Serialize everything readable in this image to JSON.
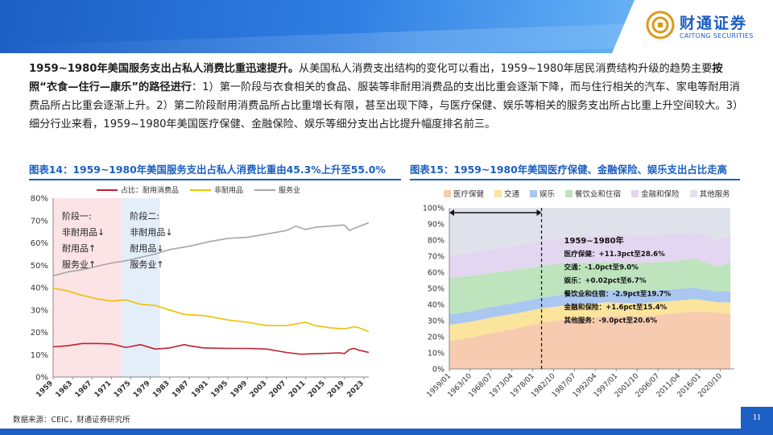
{
  "brand": {
    "name_cn": "财通证券",
    "name_en": "CAITONG SECURITIES"
  },
  "paragraph": {
    "bold_lead": "1959~1980年美国服务支出占私人消费比重迅速提升。",
    "part1": "从美国私人消费支出结构的变化可以看出，1959~1980年居民消费结构升级的趋势主要",
    "bold_mid": "按照“衣食—住行—康乐”的路径进行",
    "part2": "：1）第一阶段与衣食相关的食品、服装等非耐用消费品的支出比重会逐渐下降，而与住行相关的汽车、家电等耐用消费品所占比重会逐渐上升。2）第二阶段耐用消费品所占比重增长有限，甚至出现下降，与医疗保健、娱乐等相关的服务支出所占比重上升空间较大。3）细分行业来看，1959~1980年美国医疗保健、金融保险、娱乐等细分支出占比提升幅度排名前三。"
  },
  "figure14": {
    "title": "图表14：1959~1980年美国服务支出占私人消费比重由45.3%上升至55.0%"
  },
  "figure15": {
    "title": "图表15：1959~1980年美国医疗保健、金融保险、娱乐支出占比走高"
  },
  "source": "数据来源：CEIC，财通证券研究所",
  "page_number": "11",
  "colors": {
    "brand_blue": "#1d5ec4",
    "durable": "#c0202f",
    "nondurable": "#f0c000",
    "service": "#a6a6a6",
    "stage1_band": "#fbe3e6",
    "stage2_band": "#e3eef9",
    "healthcare": "#f6cbb0",
    "transport": "#fbe49c",
    "entertainment": "#a9c7f0",
    "food_lodging": "#bde4bc",
    "finance": "#e3d6f0",
    "other": "#dfe2ea"
  },
  "chart_data": [
    {
      "type": "line",
      "x_ticks": [
        "1959",
        "1963",
        "1967",
        "1971",
        "1975",
        "1979",
        "1983",
        "1987",
        "1991",
        "1995",
        "1999",
        "2003",
        "2007",
        "2011",
        "2015",
        "2019",
        "2023"
      ],
      "ylim": [
        0,
        80
      ],
      "y_ticks": [
        "0%",
        "10%",
        "20%",
        "30%",
        "40%",
        "50%",
        "60%",
        "70%",
        "80%"
      ],
      "grid": false,
      "legend_position": "top",
      "stage_bands": [
        {
          "label_lines": [
            "阶段一:",
            "非耐用品↓",
            "耐用品↑",
            "服务业↑"
          ],
          "from": 1959,
          "to": 1973
        },
        {
          "label_lines": [
            "阶段二:",
            "非耐用品↓",
            "耐用品↓",
            "服务业↑"
          ],
          "from": 1973,
          "to": 1981
        }
      ],
      "series": [
        {
          "name": "占比：耐用消费品",
          "color": "#c0202f",
          "points": [
            [
              1959,
              13.5
            ],
            [
              1962,
              14
            ],
            [
              1965,
              15
            ],
            [
              1968,
              15
            ],
            [
              1971,
              14.8
            ],
            [
              1974,
              13.2
            ],
            [
              1977,
              14.5
            ],
            [
              1980,
              12.5
            ],
            [
              1983,
              13
            ],
            [
              1986,
              14.5
            ],
            [
              1987,
              14
            ],
            [
              1990,
              13
            ],
            [
              1995,
              12.8
            ],
            [
              1999,
              12.8
            ],
            [
              2003,
              12.5
            ],
            [
              2007,
              11
            ],
            [
              2010,
              10.2
            ],
            [
              2014,
              10.5
            ],
            [
              2018,
              10.8
            ],
            [
              2019,
              10.5
            ],
            [
              2020,
              12.3
            ],
            [
              2021,
              12.8
            ],
            [
              2022,
              12
            ],
            [
              2024,
              11
            ]
          ]
        },
        {
          "name": "非耐用品",
          "color": "#f0c000",
          "points": [
            [
              1959,
              39.8
            ],
            [
              1962,
              38.5
            ],
            [
              1965,
              36.5
            ],
            [
              1968,
              35
            ],
            [
              1971,
              34
            ],
            [
              1974,
              34.5
            ],
            [
              1977,
              32.5
            ],
            [
              1980,
              32
            ],
            [
              1983,
              30
            ],
            [
              1986,
              28
            ],
            [
              1990,
              27.5
            ],
            [
              1995,
              25.5
            ],
            [
              1999,
              24.5
            ],
            [
              2003,
              23
            ],
            [
              2007,
              23
            ],
            [
              2011,
              24.5
            ],
            [
              2013,
              23
            ],
            [
              2016,
              22
            ],
            [
              2019,
              21.5
            ],
            [
              2021,
              22.5
            ],
            [
              2022,
              22
            ],
            [
              2024,
              20.3
            ]
          ]
        },
        {
          "name": "服务业",
          "color": "#a6a6a6",
          "points": [
            [
              1959,
              45.3
            ],
            [
              1962,
              47
            ],
            [
              1965,
              48
            ],
            [
              1968,
              49.5
            ],
            [
              1971,
              51
            ],
            [
              1974,
              52
            ],
            [
              1977,
              53.5
            ],
            [
              1980,
              55
            ],
            [
              1983,
              57
            ],
            [
              1987,
              58.5
            ],
            [
              1991,
              60.5
            ],
            [
              1995,
              62
            ],
            [
              1999,
              62.5
            ],
            [
              2003,
              64
            ],
            [
              2007,
              65.5
            ],
            [
              2009,
              67.5
            ],
            [
              2011,
              66
            ],
            [
              2013,
              67
            ],
            [
              2016,
              67.5
            ],
            [
              2019,
              68
            ],
            [
              2020,
              65.5
            ],
            [
              2021,
              66.5
            ],
            [
              2024,
              69
            ]
          ]
        }
      ]
    },
    {
      "type": "area",
      "stacked": true,
      "x_ticks": [
        "1959/01",
        "1963/10",
        "1968/07",
        "1973/04",
        "1978/01",
        "1982/10",
        "1987/07",
        "1992/04",
        "1997/01",
        "2001/10",
        "2006/07",
        "2011/04",
        "2016/01",
        "2020/10"
      ],
      "ylim": [
        0,
        100
      ],
      "y_ticks": [
        "0%",
        "10%",
        "20%",
        "30%",
        "40%",
        "50%",
        "60%",
        "70%",
        "80%",
        "90%",
        "100%"
      ],
      "grid": false,
      "legend_position": "top",
      "period_marker": {
        "from": "1959/01",
        "to": "1980"
      },
      "annotation": {
        "title": "1959~1980年",
        "lines": [
          {
            "label": "医疗保健",
            "text": "：+11.3pct至28.6%"
          },
          {
            "label": "交通",
            "text": "：-1.0pct至9.0%"
          },
          {
            "label": "娱乐",
            "text": "：+0.02pct至6.7%"
          },
          {
            "label": "餐饮业和住宿",
            "text": "：-2.9pct至19.7%"
          },
          {
            "label": "金融和保险",
            "text": "：+1.6pct至15.4%"
          },
          {
            "label": "其他服务",
            "text": "：-9.0pct至20.6%"
          }
        ]
      },
      "x": [
        1959,
        1964,
        1969,
        1974,
        1980,
        1985,
        1990,
        1995,
        2000,
        2005,
        2010,
        2015,
        2020,
        2023
      ],
      "series": [
        {
          "name": "医疗保健",
          "color": "#f6cbb0",
          "values": [
            17.3,
            19.5,
            22.5,
            25,
            28.6,
            30.5,
            31.5,
            33,
            32.5,
            33,
            34.5,
            35.5,
            35,
            34
          ]
        },
        {
          "name": "交通",
          "color": "#fbe49c",
          "values": [
            10,
            9.8,
            9.6,
            9.4,
            9.0,
            8.8,
            8.6,
            8.4,
            8.4,
            8.2,
            7.8,
            7.8,
            6.5,
            7.2
          ]
        },
        {
          "name": "娱乐",
          "color": "#a9c7f0",
          "values": [
            6.7,
            6.6,
            6.6,
            6.6,
            6.7,
            6.9,
            7.2,
            7.5,
            7.6,
            7.4,
            7.2,
            7.0,
            6.5,
            7.0
          ]
        },
        {
          "name": "餐饮业和住宿",
          "color": "#bde4bc",
          "values": [
            22.6,
            22,
            21,
            20.5,
            19.7,
            19.5,
            18.5,
            17.5,
            17.2,
            17.5,
            17.3,
            18.2,
            15.5,
            18.0
          ]
        },
        {
          "name": "金融和保险",
          "color": "#e3d6f0",
          "values": [
            13.8,
            14.2,
            14.6,
            15,
            15.4,
            16,
            16.5,
            16.8,
            17.5,
            17,
            16.8,
            16.2,
            17.0,
            16.5
          ]
        },
        {
          "name": "其他服务",
          "color": "#dfe2ea",
          "values": [
            29.6,
            27.9,
            25.7,
            23.5,
            20.6,
            18.3,
            17.7,
            16.8,
            16.8,
            16.9,
            16.4,
            15.3,
            19.5,
            17.3
          ]
        }
      ]
    }
  ]
}
